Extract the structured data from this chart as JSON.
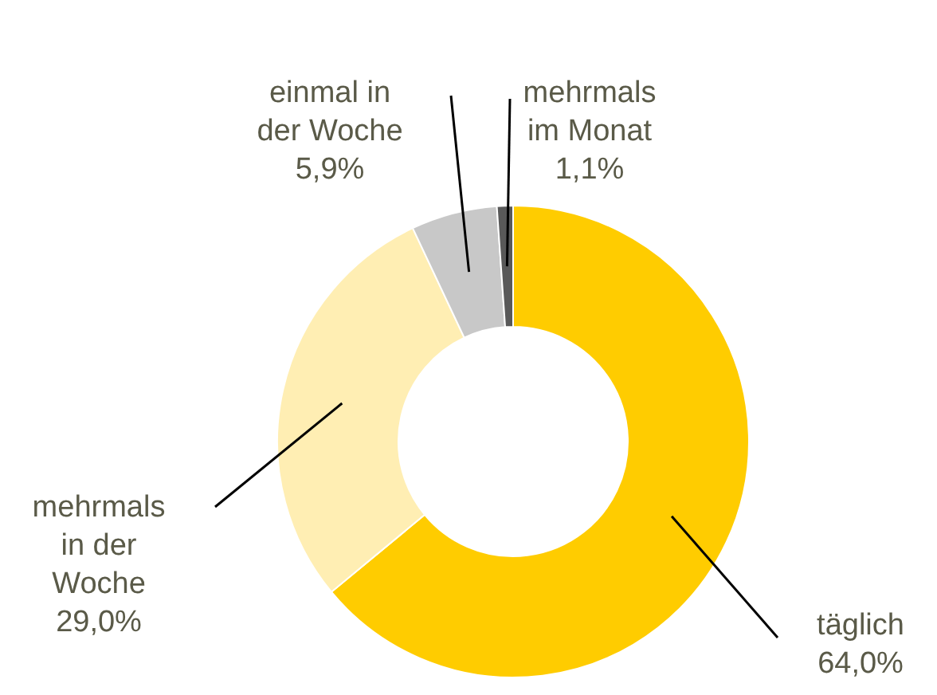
{
  "chart_data": {
    "type": "donut",
    "categories": [
      "täglich",
      "mehrmals in der Woche",
      "einmal in der Woche",
      "mehrmals im Monat"
    ],
    "values": [
      64.0,
      29.0,
      5.9,
      1.1
    ],
    "value_labels": [
      "64,0%",
      "29,0%",
      "5,9%",
      "1,1%"
    ],
    "colors": [
      "#ffcc00",
      "#ffeeb3",
      "#c8c8c8",
      "#595959"
    ]
  }
}
